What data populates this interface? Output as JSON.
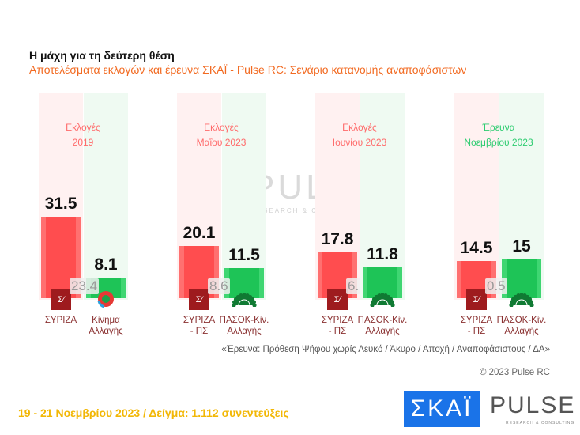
{
  "header": {
    "title": "Η μάχη για τη δεύτερη θέση",
    "subtitle": "Αποτελέσματα εκλογών και έρευνα ΣΚΑΪ - Pulse RC: Σενάριο κατανομής αναποφάσιστων"
  },
  "colors": {
    "red": "#ff4d4f",
    "green": "#1ec457",
    "subtitle": "#f26a21",
    "footer": "#f2b705",
    "survey_label": "#2ecc71",
    "election_label": "#ff6b6b"
  },
  "chart_data": {
    "type": "bar",
    "categories": [
      "Εκλογές 2019",
      "Εκλογές Μαΐου 2023",
      "Εκλογές Ιουνίου 2023",
      "Έρευνα Νοεμβρίου 2023"
    ],
    "period_lines": [
      [
        "Εκλογές",
        "2019"
      ],
      [
        "Εκλογές",
        "Μαΐου 2023"
      ],
      [
        "Εκλογές",
        "Ιουνίου 2023"
      ],
      [
        "Έρευνα",
        "Νοεμβρίου 2023"
      ]
    ],
    "series": [
      {
        "name": "ΣΥΡΙΖΑ",
        "values": [
          31.5,
          20.1,
          17.8,
          14.5
        ],
        "labels": [
          "31.5",
          "20.1",
          "17.8",
          "14.5"
        ],
        "party_labels": [
          [
            "ΣΥΡΙΖΑ",
            ""
          ],
          [
            "ΣΥΡΙΖΑ",
            "- ΠΣ"
          ],
          [
            "ΣΥΡΙΖΑ",
            "- ΠΣ"
          ],
          [
            "ΣΥΡΙΖΑ",
            "- ΠΣ"
          ]
        ],
        "icon": "syriza-logo"
      },
      {
        "name": "ΠΑΣΟΚ-Κίν. Αλλαγής",
        "values": [
          8.1,
          11.5,
          11.8,
          15
        ],
        "labels": [
          "8.1",
          "11.5",
          "11.8",
          "15"
        ],
        "party_labels": [
          [
            "Κίνημα",
            "Αλλαγής"
          ],
          [
            "ΠΑΣΟΚ-Κίν.",
            "Αλλαγής"
          ],
          [
            "ΠΑΣΟΚ-Κίν.",
            "Αλλαγής"
          ],
          [
            "ΠΑΣΟΚ-Κίν.",
            "Αλλαγής"
          ]
        ],
        "icon": "pasok-logo"
      }
    ],
    "differences": [
      "23.4",
      "8.6",
      "6.",
      "0.5"
    ],
    "ylim": [
      0,
      40
    ],
    "grid": false
  },
  "watermark": {
    "text": "PULSE",
    "sub": "RESEARCH & CONSULTING"
  },
  "note": "«Έρευνα: Πρόθεση Ψήφου χωρίς Λευκό / Άκυρο / Αποχή / Αναποφάσιστους / ΔΑ»",
  "copyright": "© 2023 Pulse RC",
  "footer": "19 - 21  Νοεμβρίου  2023  /  Δείγμα:  1.112 συνεντεύξεις",
  "logos": {
    "skai": "ΣΚΑΪ",
    "pulse": "PULSE",
    "pulse_sub": "RESEARCH & CONSULTING"
  }
}
